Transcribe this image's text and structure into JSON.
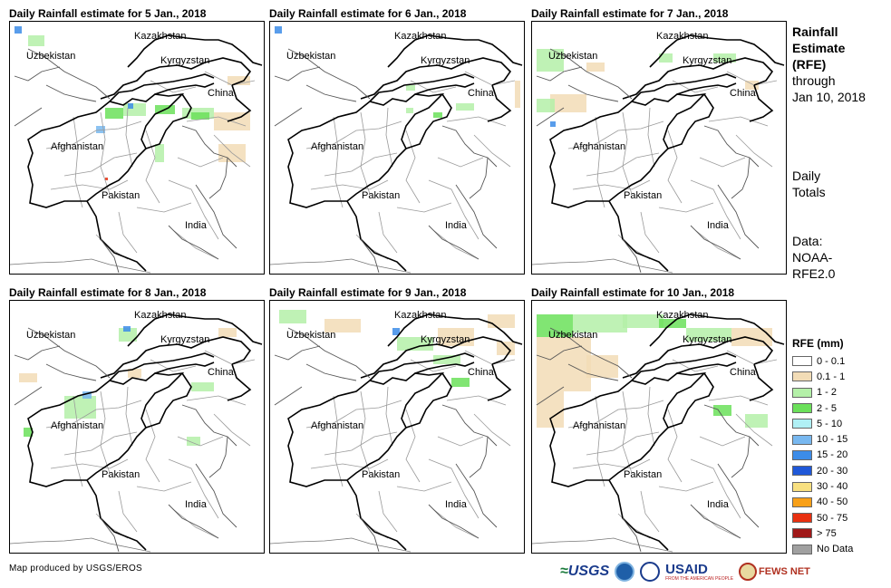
{
  "panels": [
    {
      "title": "Daily Rainfall estimate for 5 Jan., 2018"
    },
    {
      "title": "Daily Rainfall estimate for 6 Jan., 2018"
    },
    {
      "title": "Daily Rainfall estimate for 7 Jan., 2018"
    },
    {
      "title": "Daily Rainfall estimate for 8 Jan., 2018"
    },
    {
      "title": "Daily Rainfall estimate for 9 Jan., 2018"
    },
    {
      "title": "Daily Rainfall estimate for 10 Jan., 2018"
    }
  ],
  "map_labels": {
    "kazakhstan": "Kazakhstan",
    "uzbekistan": "Uzbekistan",
    "kyrgyzstan": "Kyrgyzstan",
    "china": "China",
    "afghanistan": "Afghanistan",
    "pakistan": "Pakistan",
    "india": "India"
  },
  "sidebar": {
    "title_line1": "Rainfall",
    "title_line2": "Estimate",
    "title_line3": "(RFE)",
    "through_line1": "through",
    "through_line2": "Jan 10, 2018",
    "daily_line1": "Daily",
    "daily_line2": "Totals",
    "data_line1": "Data:",
    "data_line2": "NOAA-",
    "data_line3": "RFE2.0"
  },
  "legend": {
    "title": "RFE (mm)",
    "items": [
      {
        "label": "0 - 0.1",
        "color": "#ffffff"
      },
      {
        "label": "0.1 - 1",
        "color": "#f2dcb6"
      },
      {
        "label": "1 - 2",
        "color": "#b4f0a8"
      },
      {
        "label": "2 - 5",
        "color": "#6be05a"
      },
      {
        "label": "5 - 10",
        "color": "#b0f0f5"
      },
      {
        "label": "10 - 15",
        "color": "#78b8f0"
      },
      {
        "label": "15 - 20",
        "color": "#3c8ce8"
      },
      {
        "label": "20 - 30",
        "color": "#1f58d8"
      },
      {
        "label": "30 - 40",
        "color": "#f8e080"
      },
      {
        "label": "40 - 50",
        "color": "#f8a018"
      },
      {
        "label": "50 - 75",
        "color": "#e83010"
      },
      {
        "label": "> 75",
        "color": "#a01818"
      },
      {
        "label": "No Data",
        "color": "#a0a0a0"
      }
    ]
  },
  "credit": "Map produced by USGS/EROS",
  "logos": {
    "usgs": "USGS",
    "usaid": "USAID",
    "usaid_sub": "FROM THE AMERICAN PEOPLE",
    "fews": "FEWS NET"
  }
}
